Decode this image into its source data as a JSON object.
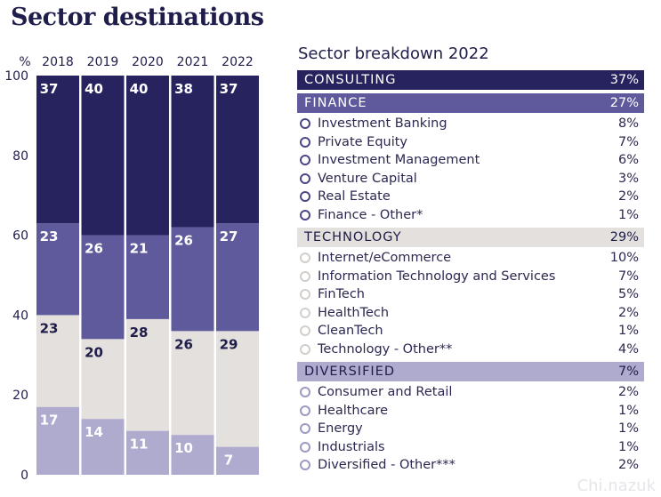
{
  "title": "Sector destinations",
  "chart_data": {
    "type": "bar",
    "stacked": true,
    "ylabel": "%",
    "ylim": [
      0,
      100
    ],
    "yticks": [
      0,
      20,
      40,
      60,
      80,
      100
    ],
    "categories": [
      "2018",
      "2019",
      "2020",
      "2021",
      "2022"
    ],
    "series": [
      {
        "color": "#aeabcf",
        "values": [
          17,
          14,
          11,
          10,
          7
        ]
      },
      {
        "color": "#e4e0dd",
        "values": [
          23,
          20,
          28,
          26,
          29
        ]
      },
      {
        "color": "#5e5a9b",
        "values": [
          23,
          26,
          21,
          26,
          27
        ]
      },
      {
        "color": "#26235e",
        "values": [
          37,
          40,
          40,
          38,
          37
        ]
      }
    ]
  },
  "breakdown": {
    "title": "Sector breakdown 2022",
    "sections": [
      {
        "label": "CONSULTING",
        "pct": "37%",
        "header_bg": "#26235e",
        "header_fg": "#ffffff",
        "bullet": "#26235e",
        "items": []
      },
      {
        "label": "FINANCE",
        "pct": "27%",
        "header_bg": "#5e5a9b",
        "header_fg": "#ffffff",
        "bullet": "#4a4788",
        "items": [
          {
            "name": "Investment Banking",
            "pct": "8%"
          },
          {
            "name": "Private Equity",
            "pct": "7%"
          },
          {
            "name": "Investment Management",
            "pct": "6%"
          },
          {
            "name": "Venture Capital",
            "pct": "3%"
          },
          {
            "name": "Real Estate",
            "pct": "2%"
          },
          {
            "name": "Finance - Other*",
            "pct": "1%"
          }
        ]
      },
      {
        "label": "TECHNOLOGY",
        "pct": "29%",
        "header_bg": "#e4e0dd",
        "header_fg": "#1f1d4a",
        "bullet": "#d2cecb",
        "items": [
          {
            "name": "Internet/eCommerce",
            "pct": "10%"
          },
          {
            "name": "Information Technology and Services",
            "pct": "7%"
          },
          {
            "name": "FinTech",
            "pct": "5%"
          },
          {
            "name": "HealthTech",
            "pct": "2%"
          },
          {
            "name": "CleanTech",
            "pct": "1%"
          },
          {
            "name": "Technology - Other**",
            "pct": "4%"
          }
        ]
      },
      {
        "label": "DIVERSIFIED",
        "pct": "7%",
        "header_bg": "#aeabcf",
        "header_fg": "#1f1d4a",
        "bullet": "#9c99c4",
        "items": [
          {
            "name": "Consumer and Retail",
            "pct": "2%"
          },
          {
            "name": "Healthcare",
            "pct": "1%"
          },
          {
            "name": "Energy",
            "pct": "1%"
          },
          {
            "name": "Industrials",
            "pct": "1%"
          },
          {
            "name": "Diversified - Other***",
            "pct": "2%"
          }
        ]
      }
    ]
  },
  "watermark": "Chi.nazuk"
}
